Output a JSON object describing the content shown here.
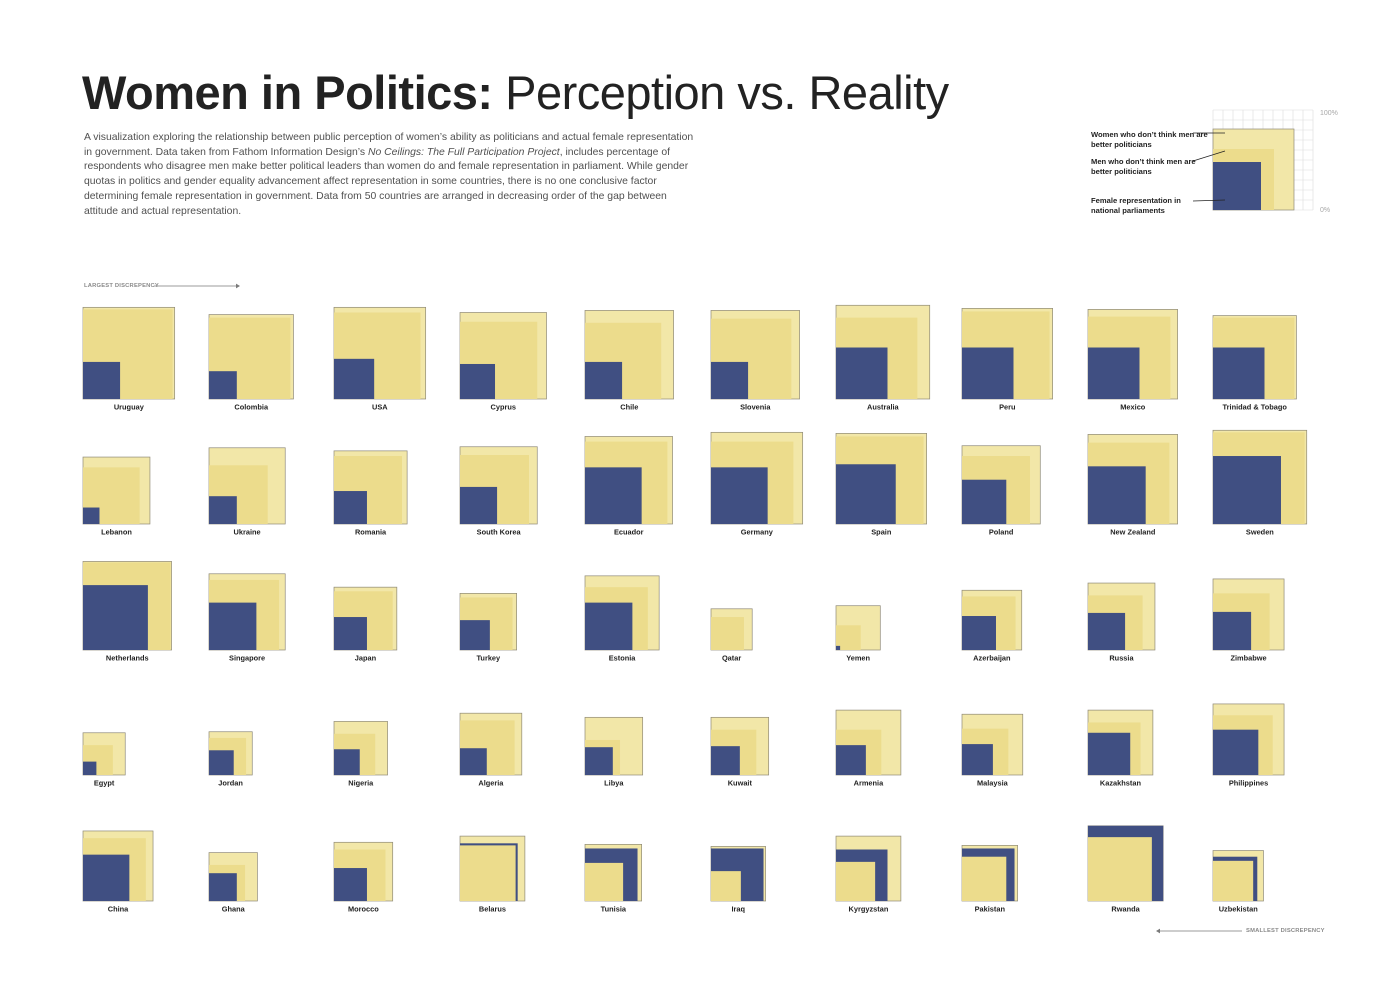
{
  "page": {
    "title_bold": "Women in Politics:",
    "title_light": " Perception vs. Reality",
    "description_before": "A visualization exploring the relationship between public perception of women’s ability as politicians and actual female representation in government.  Data taken from Fathom Information Design’s ",
    "description_italic": "No Ceilings: The Full Participation Project",
    "description_after": ", includes percentage of respondents who disagree men make better political leaders than women do and female representation in parliament.  While gender quotas in politics and gender equality advancement affect representation in some countries, there is no one conclusive factor determining female representation in government. Data from 50 countries are arranged in decreasing order of the gap between attitude and actual representation.",
    "largest_label": "LARGEST DISCREPENCY",
    "smallest_label": "SMALLEST DISCREPENCY"
  },
  "legend": {
    "women_label": "Women who don’t think men are better politicians",
    "men_label": "Men who don’t think men are better politicians",
    "parliament_label": "Female representation in national parliaments",
    "top_tick": "100%",
    "bottom_tick": "0%"
  },
  "colors": {
    "women_fill": "#f2e7a8",
    "men_fill": "#ecdc8c",
    "parliament_fill": "#404f82",
    "square_border": "#8f8a78",
    "grid_line": "#dcdcdc"
  },
  "chart_data": {
    "type": "nested-squares",
    "description_of_encoding": "",
    "series": [
      {
        "name": "Women who don’t think men are better politicians",
        "key": "women"
      },
      {
        "name": "Men who don’t think men are better politicians",
        "key": "men"
      },
      {
        "name": "Female representation in national parliaments",
        "key": "parliament"
      }
    ],
    "countries": [
      {
        "name": "Uruguay",
        "women": 89,
        "men": 87,
        "parliament": 36
      },
      {
        "name": "Colombia",
        "women": 82,
        "men": 79,
        "parliament": 27
      },
      {
        "name": "USA",
        "women": 89,
        "men": 84,
        "parliament": 39
      },
      {
        "name": "Cyprus",
        "women": 84,
        "men": 75,
        "parliament": 34
      },
      {
        "name": "Chile",
        "women": 86,
        "men": 74,
        "parliament": 36
      },
      {
        "name": "Slovenia",
        "women": 86,
        "men": 78,
        "parliament": 36
      },
      {
        "name": "Australia",
        "women": 91,
        "men": 79,
        "parliament": 50
      },
      {
        "name": "Peru",
        "women": 88,
        "men": 85,
        "parliament": 50
      },
      {
        "name": "Mexico",
        "women": 87,
        "men": 80,
        "parliament": 50
      },
      {
        "name": "Trinidad & Tobago",
        "women": 81,
        "men": 79,
        "parliament": 50
      },
      {
        "name": "Lebanon",
        "women": 65,
        "men": 55,
        "parliament": 16
      },
      {
        "name": "Ukraine",
        "women": 74,
        "men": 57,
        "parliament": 27
      },
      {
        "name": "Romania",
        "women": 71,
        "men": 66,
        "parliament": 32
      },
      {
        "name": "South Korea",
        "women": 75,
        "men": 67,
        "parliament": 36
      },
      {
        "name": "Ecuador",
        "women": 85,
        "men": 80,
        "parliament": 55
      },
      {
        "name": "Germany",
        "women": 89,
        "men": 80,
        "parliament": 55
      },
      {
        "name": "Spain",
        "women": 88,
        "men": 85,
        "parliament": 58
      },
      {
        "name": "Poland",
        "women": 76,
        "men": 66,
        "parliament": 43
      },
      {
        "name": "New Zealand",
        "women": 87,
        "men": 79,
        "parliament": 56
      },
      {
        "name": "Sweden",
        "women": 91,
        "men": 89,
        "parliament": 66
      },
      {
        "name": "Netherlands",
        "women": 86,
        "men": 85,
        "parliament": 63
      },
      {
        "name": "Singapore",
        "women": 74,
        "men": 68,
        "parliament": 46
      },
      {
        "name": "Japan",
        "women": 61,
        "men": 57,
        "parliament": 32
      },
      {
        "name": "Turkey",
        "women": 55,
        "men": 51,
        "parliament": 29
      },
      {
        "name": "Estonia",
        "women": 72,
        "men": 61,
        "parliament": 46
      },
      {
        "name": "Qatar",
        "women": 40,
        "men": 32,
        "parliament": 0
      },
      {
        "name": "Yemen",
        "women": 43,
        "men": 24,
        "parliament": 4
      },
      {
        "name": "Azerbaijan",
        "women": 58,
        "men": 52,
        "parliament": 33
      },
      {
        "name": "Russia",
        "women": 65,
        "men": 53,
        "parliament": 36
      },
      {
        "name": "Zimbabwe",
        "women": 69,
        "men": 55,
        "parliament": 37
      },
      {
        "name": "Egypt",
        "women": 41,
        "men": 29,
        "parliament": 13
      },
      {
        "name": "Jordan",
        "women": 42,
        "men": 36,
        "parliament": 24
      },
      {
        "name": "Nigeria",
        "women": 52,
        "men": 40,
        "parliament": 25
      },
      {
        "name": "Algeria",
        "women": 60,
        "men": 53,
        "parliament": 26
      },
      {
        "name": "Libya",
        "women": 56,
        "men": 34,
        "parliament": 27
      },
      {
        "name": "Kuwait",
        "women": 56,
        "men": 44,
        "parliament": 28
      },
      {
        "name": "Armenia",
        "women": 63,
        "men": 44,
        "parliament": 29
      },
      {
        "name": "Malaysia",
        "women": 59,
        "men": 45,
        "parliament": 30
      },
      {
        "name": "Kazakhstan",
        "women": 63,
        "men": 51,
        "parliament": 41
      },
      {
        "name": "Philippines",
        "women": 69,
        "men": 58,
        "parliament": 44
      },
      {
        "name": "China",
        "women": 68,
        "men": 61,
        "parliament": 45
      },
      {
        "name": "Ghana",
        "women": 47,
        "men": 35,
        "parliament": 27
      },
      {
        "name": "Morocco",
        "women": 57,
        "men": 50,
        "parliament": 32
      },
      {
        "name": "Belarus",
        "women": 63,
        "men": 54,
        "parliament": 56
      },
      {
        "name": "Tunisia",
        "women": 55,
        "men": 37,
        "parliament": 51
      },
      {
        "name": "Iraq",
        "women": 53,
        "men": 29,
        "parliament": 51
      },
      {
        "name": "Kyrgyzstan",
        "women": 63,
        "men": 38,
        "parliament": 50
      },
      {
        "name": "Pakistan",
        "women": 54,
        "men": 43,
        "parliament": 51
      },
      {
        "name": "Rwanda",
        "women": 73,
        "men": 62,
        "parliament": 73
      },
      {
        "name": "Uzbekistan",
        "women": 49,
        "men": 39,
        "parliament": 43
      }
    ]
  }
}
